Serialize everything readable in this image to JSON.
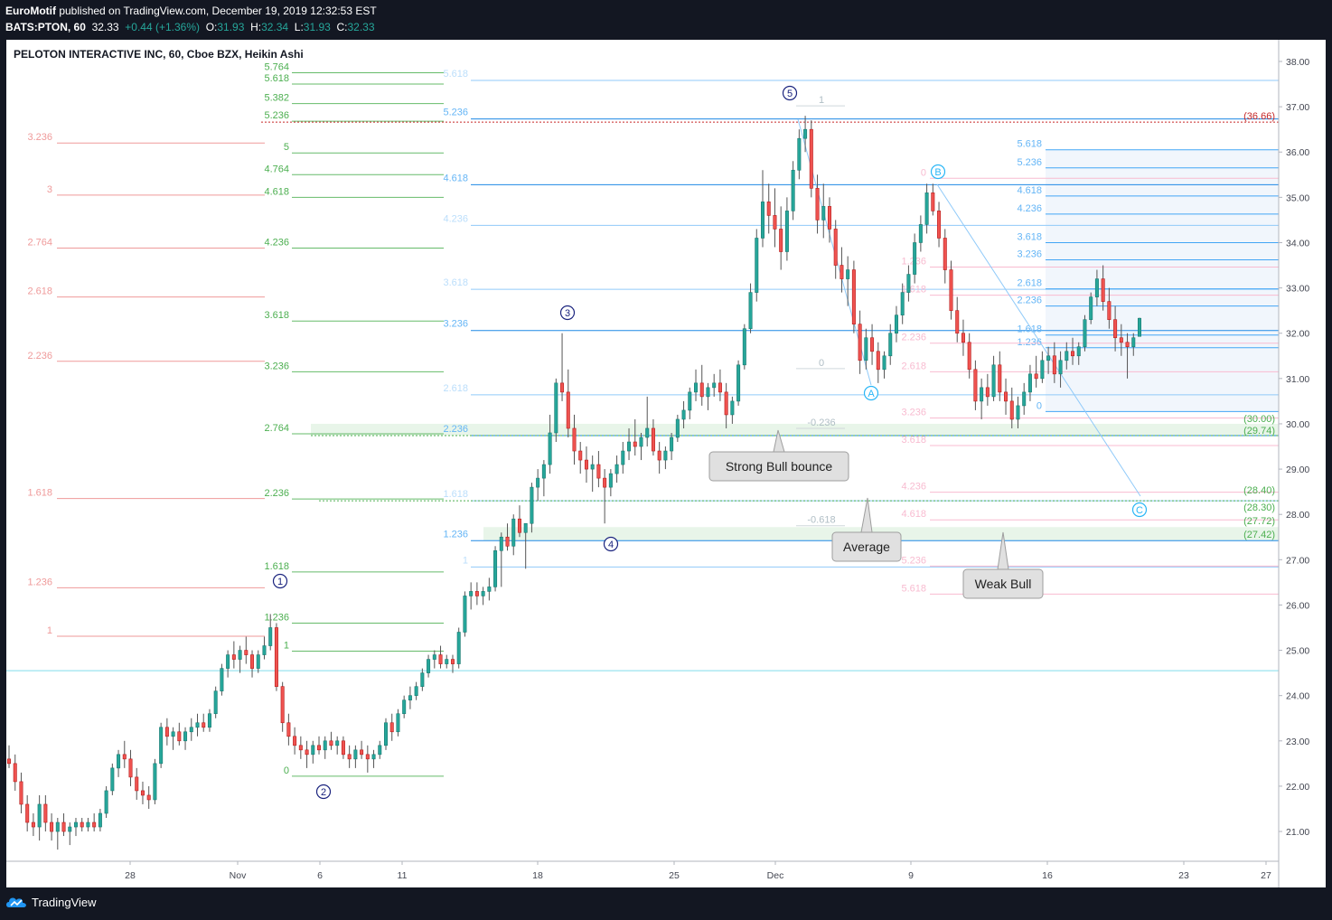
{
  "header": {
    "author": "EuroMotif",
    "published_text": " published on TradingView.com, December 19, 2019 12:32:53 EST",
    "symbol": "BATS:PTON, 60",
    "last": "32.33",
    "change": "+0.44 (+1.36%)",
    "o_label": "O:",
    "o_val": "31.93",
    "h_label": "H:",
    "h_val": "32.34",
    "l_label": "L:",
    "l_val": "31.93",
    "c_label": "C:",
    "c_val": "32.33"
  },
  "footer": {
    "brand": "TradingView"
  },
  "colors": {
    "background": "#131722",
    "up": "#26a69a",
    "down": "#ef5350",
    "fib_green": "#4caf50",
    "fib_red": "#ef9a9a",
    "fib_blue": "#64b5f6",
    "wave_label": "#1a237e",
    "price_box": "#d32f2f"
  },
  "chart_data": {
    "type": "candlestick",
    "title": "PELOTON INTERACTIVE INC, 60, Cboe BZX, Heikin Ashi",
    "y_range": [
      20.5,
      38.4
    ],
    "y_ticks": [
      "38.00",
      "37.00",
      "36.00",
      "35.00",
      "34.00",
      "33.00",
      "32.00",
      "31.00",
      "30.00",
      "29.00",
      "28.00",
      "27.00",
      "26.00",
      "25.00",
      "24.00",
      "23.00",
      "22.00",
      "21.00"
    ],
    "x_ticks": [
      "28",
      "Nov",
      "6",
      "11",
      "18",
      "25",
      "Dec",
      "9",
      "16",
      "23",
      "27"
    ],
    "price_labels": [
      "(36.66)",
      "(30.00)",
      "(29.74)",
      "(28.40)",
      "(28.30)",
      "(27.72)",
      "(27.42)"
    ],
    "candles": [
      [
        22.6,
        22.9,
        22.4,
        22.5
      ],
      [
        22.5,
        22.7,
        21.9,
        22.1
      ],
      [
        22.1,
        22.3,
        21.4,
        21.6
      ],
      [
        21.6,
        21.8,
        21.0,
        21.2
      ],
      [
        21.2,
        21.4,
        20.9,
        21.1
      ],
      [
        21.1,
        21.8,
        20.8,
        21.6
      ],
      [
        21.6,
        21.8,
        21.0,
        21.2
      ],
      [
        21.2,
        21.4,
        20.8,
        21.0
      ],
      [
        21.0,
        21.3,
        20.6,
        21.2
      ],
      [
        21.2,
        21.4,
        20.9,
        21.0
      ],
      [
        21.0,
        21.2,
        20.7,
        21.1
      ],
      [
        21.1,
        21.3,
        20.9,
        21.2
      ],
      [
        21.2,
        21.3,
        21.0,
        21.1
      ],
      [
        21.1,
        21.3,
        21.0,
        21.2
      ],
      [
        21.2,
        21.4,
        21.0,
        21.1
      ],
      [
        21.1,
        21.5,
        21.0,
        21.4
      ],
      [
        21.4,
        22.0,
        21.3,
        21.9
      ],
      [
        21.9,
        22.5,
        21.8,
        22.4
      ],
      [
        22.4,
        22.8,
        22.2,
        22.7
      ],
      [
        22.7,
        23.0,
        22.4,
        22.6
      ],
      [
        22.6,
        22.8,
        22.0,
        22.2
      ],
      [
        22.2,
        22.4,
        21.7,
        21.9
      ],
      [
        21.9,
        22.1,
        21.6,
        21.8
      ],
      [
        21.8,
        22.0,
        21.5,
        21.7
      ],
      [
        21.7,
        22.6,
        21.6,
        22.5
      ],
      [
        22.5,
        23.4,
        22.4,
        23.3
      ],
      [
        23.3,
        23.5,
        22.9,
        23.1
      ],
      [
        23.1,
        23.3,
        22.8,
        23.2
      ],
      [
        23.2,
        23.4,
        22.9,
        23.0
      ],
      [
        23.0,
        23.3,
        22.8,
        23.2
      ],
      [
        23.2,
        23.5,
        23.0,
        23.3
      ],
      [
        23.3,
        23.6,
        23.1,
        23.4
      ],
      [
        23.4,
        23.6,
        23.2,
        23.3
      ],
      [
        23.3,
        23.7,
        23.2,
        23.6
      ],
      [
        23.6,
        24.2,
        23.5,
        24.1
      ],
      [
        24.1,
        24.7,
        24.0,
        24.6
      ],
      [
        24.6,
        25.0,
        24.4,
        24.9
      ],
      [
        24.9,
        25.2,
        24.6,
        24.8
      ],
      [
        24.8,
        25.1,
        24.5,
        25.0
      ],
      [
        25.0,
        25.3,
        24.7,
        24.9
      ],
      [
        24.9,
        25.0,
        24.4,
        24.6
      ],
      [
        24.6,
        25.0,
        24.5,
        24.9
      ],
      [
        24.9,
        25.3,
        24.8,
        25.1
      ],
      [
        25.1,
        25.8,
        25.0,
        25.5
      ],
      [
        25.5,
        25.6,
        24.1,
        24.2
      ],
      [
        24.2,
        24.3,
        23.2,
        23.4
      ],
      [
        23.4,
        23.6,
        22.9,
        23.1
      ],
      [
        23.1,
        23.3,
        22.7,
        22.9
      ],
      [
        22.9,
        23.1,
        22.6,
        22.8
      ],
      [
        22.8,
        23.0,
        22.4,
        22.7
      ],
      [
        22.7,
        23.0,
        22.5,
        22.9
      ],
      [
        22.9,
        23.1,
        22.7,
        22.8
      ],
      [
        22.8,
        23.1,
        22.6,
        23.0
      ],
      [
        23.0,
        23.2,
        22.8,
        22.9
      ],
      [
        22.9,
        23.1,
        22.7,
        23.0
      ],
      [
        23.0,
        23.1,
        22.6,
        22.7
      ],
      [
        22.7,
        22.9,
        22.4,
        22.6
      ],
      [
        22.6,
        22.9,
        22.4,
        22.8
      ],
      [
        22.8,
        23.0,
        22.6,
        22.7
      ],
      [
        22.7,
        22.9,
        22.3,
        22.6
      ],
      [
        22.6,
        22.8,
        22.4,
        22.7
      ],
      [
        22.7,
        23.0,
        22.6,
        22.9
      ],
      [
        22.9,
        23.5,
        22.8,
        23.4
      ],
      [
        23.4,
        23.6,
        23.0,
        23.2
      ],
      [
        23.2,
        23.7,
        23.1,
        23.6
      ],
      [
        23.6,
        24.0,
        23.5,
        23.9
      ],
      [
        23.9,
        24.2,
        23.7,
        24.0
      ],
      [
        24.0,
        24.3,
        23.9,
        24.2
      ],
      [
        24.2,
        24.6,
        24.1,
        24.5
      ],
      [
        24.5,
        24.9,
        24.4,
        24.8
      ],
      [
        24.8,
        25.0,
        24.6,
        24.9
      ],
      [
        24.9,
        25.1,
        24.6,
        24.7
      ],
      [
        24.7,
        24.9,
        24.6,
        24.8
      ],
      [
        24.8,
        24.9,
        24.5,
        24.7
      ],
      [
        24.7,
        25.5,
        24.6,
        25.4
      ],
      [
        25.4,
        26.3,
        25.3,
        26.2
      ],
      [
        26.2,
        26.5,
        25.9,
        26.3
      ],
      [
        26.3,
        26.5,
        26.0,
        26.2
      ],
      [
        26.2,
        26.4,
        26.0,
        26.3
      ],
      [
        26.3,
        26.6,
        26.1,
        26.4
      ],
      [
        26.4,
        27.3,
        26.3,
        27.2
      ],
      [
        27.2,
        27.6,
        26.4,
        27.5
      ],
      [
        27.5,
        27.8,
        27.2,
        27.3
      ],
      [
        27.3,
        28.0,
        27.1,
        27.9
      ],
      [
        27.9,
        28.2,
        27.5,
        27.6
      ],
      [
        27.6,
        27.8,
        26.8,
        27.8
      ],
      [
        27.8,
        28.7,
        27.6,
        28.6
      ],
      [
        28.6,
        29.0,
        28.3,
        28.8
      ],
      [
        28.8,
        29.2,
        28.4,
        29.1
      ],
      [
        29.1,
        30.2,
        28.9,
        29.8
      ],
      [
        29.8,
        31.0,
        29.6,
        30.9
      ],
      [
        30.9,
        32.0,
        30.5,
        30.7
      ],
      [
        30.7,
        31.2,
        29.7,
        29.9
      ],
      [
        29.9,
        30.2,
        29.1,
        29.4
      ],
      [
        29.4,
        29.6,
        28.9,
        29.2
      ],
      [
        29.2,
        29.5,
        28.7,
        29.0
      ],
      [
        29.0,
        29.3,
        28.5,
        29.1
      ],
      [
        29.1,
        29.4,
        28.6,
        28.8
      ],
      [
        28.8,
        29.0,
        27.8,
        28.6
      ],
      [
        28.6,
        29.0,
        28.4,
        28.9
      ],
      [
        28.9,
        29.3,
        28.7,
        29.1
      ],
      [
        29.1,
        29.6,
        28.9,
        29.4
      ],
      [
        29.4,
        29.9,
        29.2,
        29.6
      ],
      [
        29.6,
        30.1,
        29.3,
        29.5
      ],
      [
        29.5,
        29.8,
        29.2,
        29.7
      ],
      [
        29.7,
        30.6,
        29.5,
        29.9
      ],
      [
        29.9,
        30.1,
        29.3,
        29.4
      ],
      [
        29.4,
        29.6,
        28.9,
        29.2
      ],
      [
        29.2,
        29.5,
        29.0,
        29.4
      ],
      [
        29.4,
        29.8,
        29.2,
        29.7
      ],
      [
        29.7,
        30.2,
        29.6,
        30.1
      ],
      [
        30.1,
        30.5,
        29.9,
        30.3
      ],
      [
        30.3,
        30.8,
        30.1,
        30.7
      ],
      [
        30.7,
        31.2,
        30.5,
        30.9
      ],
      [
        30.9,
        31.3,
        30.4,
        30.6
      ],
      [
        30.6,
        30.9,
        30.3,
        30.8
      ],
      [
        30.8,
        31.1,
        30.6,
        30.9
      ],
      [
        30.9,
        31.2,
        30.5,
        30.7
      ],
      [
        30.7,
        30.9,
        29.9,
        30.2
      ],
      [
        30.2,
        30.6,
        30.0,
        30.5
      ],
      [
        30.5,
        31.4,
        30.4,
        31.3
      ],
      [
        31.3,
        32.2,
        31.2,
        32.1
      ],
      [
        32.1,
        33.1,
        32.0,
        32.9
      ],
      [
        32.9,
        34.3,
        32.7,
        34.1
      ],
      [
        34.1,
        35.6,
        33.9,
        34.9
      ],
      [
        34.9,
        35.3,
        34.2,
        34.6
      ],
      [
        34.6,
        35.2,
        33.9,
        34.3
      ],
      [
        34.3,
        34.8,
        33.4,
        33.8
      ],
      [
        33.8,
        35.0,
        33.6,
        34.7
      ],
      [
        34.7,
        35.8,
        34.5,
        35.6
      ],
      [
        35.6,
        36.5,
        35.4,
        36.3
      ],
      [
        36.3,
        36.8,
        36.0,
        36.5
      ],
      [
        36.5,
        36.7,
        35.0,
        35.2
      ],
      [
        35.2,
        35.5,
        34.2,
        34.5
      ],
      [
        34.5,
        35.3,
        34.1,
        34.8
      ],
      [
        34.8,
        35.0,
        34.0,
        34.3
      ],
      [
        34.3,
        34.5,
        33.2,
        33.5
      ],
      [
        33.5,
        33.9,
        32.9,
        33.2
      ],
      [
        33.2,
        33.7,
        32.6,
        33.4
      ],
      [
        33.4,
        33.6,
        32.0,
        32.2
      ],
      [
        32.2,
        32.5,
        31.1,
        31.4
      ],
      [
        31.4,
        32.1,
        31.2,
        31.9
      ],
      [
        31.9,
        32.2,
        31.3,
        31.6
      ],
      [
        31.6,
        31.8,
        30.9,
        31.2
      ],
      [
        31.2,
        31.6,
        31.0,
        31.5
      ],
      [
        31.5,
        32.2,
        31.3,
        32.0
      ],
      [
        32.0,
        32.6,
        31.8,
        32.4
      ],
      [
        32.4,
        33.1,
        32.2,
        32.9
      ],
      [
        32.9,
        33.5,
        32.7,
        33.3
      ],
      [
        33.3,
        34.2,
        33.1,
        34.0
      ],
      [
        34.0,
        34.6,
        33.8,
        34.4
      ],
      [
        34.4,
        35.3,
        34.2,
        35.1
      ],
      [
        35.1,
        35.3,
        34.6,
        34.7
      ],
      [
        34.7,
        34.9,
        33.9,
        34.1
      ],
      [
        34.1,
        34.3,
        33.1,
        33.4
      ],
      [
        33.4,
        33.6,
        32.3,
        32.5
      ],
      [
        32.5,
        32.8,
        31.8,
        32.0
      ],
      [
        32.0,
        32.3,
        31.5,
        31.8
      ],
      [
        31.8,
        32.0,
        31.0,
        31.2
      ],
      [
        31.2,
        31.4,
        30.3,
        30.5
      ],
      [
        30.5,
        31.0,
        30.1,
        30.8
      ],
      [
        30.8,
        31.1,
        30.4,
        30.6
      ],
      [
        30.6,
        31.5,
        30.5,
        31.3
      ],
      [
        31.3,
        31.6,
        30.5,
        30.7
      ],
      [
        30.7,
        31.0,
        30.2,
        30.5
      ],
      [
        30.5,
        30.8,
        29.9,
        30.1
      ],
      [
        30.1,
        30.6,
        29.9,
        30.4
      ],
      [
        30.4,
        30.9,
        30.2,
        30.7
      ],
      [
        30.7,
        31.3,
        30.5,
        31.1
      ],
      [
        31.1,
        31.5,
        30.8,
        31.0
      ],
      [
        31.0,
        31.6,
        30.9,
        31.4
      ],
      [
        31.4,
        31.7,
        31.1,
        31.5
      ],
      [
        31.5,
        31.8,
        30.9,
        31.1
      ],
      [
        31.1,
        31.6,
        30.8,
        31.4
      ],
      [
        31.4,
        31.8,
        31.2,
        31.6
      ],
      [
        31.6,
        31.9,
        31.3,
        31.5
      ],
      [
        31.5,
        31.8,
        31.3,
        31.7
      ],
      [
        31.7,
        32.4,
        31.6,
        32.3
      ],
      [
        32.3,
        32.9,
        32.2,
        32.8
      ],
      [
        32.8,
        33.4,
        32.6,
        33.2
      ],
      [
        33.2,
        33.5,
        32.5,
        32.7
      ],
      [
        32.7,
        33.0,
        32.1,
        32.3
      ],
      [
        32.3,
        32.6,
        31.6,
        31.9
      ],
      [
        31.9,
        32.2,
        31.5,
        31.8
      ],
      [
        31.8,
        32.0,
        31.0,
        31.7
      ],
      [
        31.7,
        32.0,
        31.5,
        31.9
      ],
      [
        31.93,
        32.34,
        31.93,
        32.33
      ]
    ],
    "waves": [
      {
        "label": "1",
        "style": "dark"
      },
      {
        "label": "2",
        "style": "dark"
      },
      {
        "label": "3",
        "style": "dark"
      },
      {
        "label": "4",
        "style": "dark"
      },
      {
        "label": "5",
        "style": "dark"
      },
      {
        "label": "A",
        "style": "light"
      },
      {
        "label": "B",
        "style": "light"
      },
      {
        "label": "C",
        "style": "light"
      }
    ],
    "fib_green": [
      {
        "label": "5.764",
        "price": 37.75
      },
      {
        "label": "5.618",
        "price": 37.5
      },
      {
        "label": "5.382",
        "price": 37.07
      },
      {
        "label": "5.236",
        "price": 36.68
      },
      {
        "label": "5",
        "price": 35.98
      },
      {
        "label": "4.764",
        "price": 35.5
      },
      {
        "label": "4.618",
        "price": 35.0
      },
      {
        "label": "4.236",
        "price": 33.88
      },
      {
        "label": "3.618",
        "price": 32.27
      },
      {
        "label": "3.236",
        "price": 31.15
      },
      {
        "label": "2.764",
        "price": 29.78
      },
      {
        "label": "2.236",
        "price": 28.34
      },
      {
        "label": "1.618",
        "price": 26.73
      },
      {
        "label": "1.236",
        "price": 25.6
      },
      {
        "label": "1",
        "price": 24.98
      },
      {
        "label": "0",
        "price": 22.22
      }
    ],
    "fib_red": [
      {
        "label": "3.236",
        "price": 36.2
      },
      {
        "label": "3",
        "price": 35.05
      },
      {
        "label": "2.764",
        "price": 33.88
      },
      {
        "label": "2.618",
        "price": 32.8
      },
      {
        "label": "2.236",
        "price": 31.38
      },
      {
        "label": "1.618",
        "price": 28.35
      },
      {
        "label": "1.236",
        "price": 26.38
      },
      {
        "label": "1",
        "price": 25.31
      }
    ],
    "fib_blue_mid": [
      {
        "label": "5.618",
        "price": 37.58,
        "strong": false
      },
      {
        "label": "5.236",
        "price": 36.73,
        "strong": true
      },
      {
        "label": "4.618",
        "price": 35.28,
        "strong": true
      },
      {
        "label": "4.236",
        "price": 34.38,
        "strong": false
      },
      {
        "label": "3.618",
        "price": 32.97,
        "strong": false
      },
      {
        "label": "3.236",
        "price": 32.06,
        "strong": true
      },
      {
        "label": "2.618",
        "price": 30.64,
        "strong": false
      },
      {
        "label": "2.236",
        "price": 29.74,
        "strong": true
      },
      {
        "label": "1.618",
        "price": 28.3,
        "strong": false
      },
      {
        "label": "1.236",
        "price": 27.42,
        "strong": true
      },
      {
        "label": "1",
        "price": 26.84,
        "strong": false
      }
    ],
    "fib_blue_right": [
      {
        "label": "5.618",
        "price": 36.05
      },
      {
        "label": "5.236",
        "price": 35.65
      },
      {
        "label": "4.618",
        "price": 35.03
      },
      {
        "label": "4.236",
        "price": 34.63
      },
      {
        "label": "3.618",
        "price": 34.0
      },
      {
        "label": "3.236",
        "price": 33.62
      },
      {
        "label": "2.618",
        "price": 32.98
      },
      {
        "label": "2.236",
        "price": 32.6
      },
      {
        "label": "1.618",
        "price": 31.96
      },
      {
        "label": "1.236",
        "price": 31.68
      },
      {
        "label": "0",
        "price": 30.27
      }
    ],
    "fib_pink_right": [
      {
        "label": "0",
        "price": 35.42
      },
      {
        "label": "1.236",
        "price": 33.46
      },
      {
        "label": "1.618",
        "price": 32.84
      },
      {
        "label": "2.236",
        "price": 31.78
      },
      {
        "label": "2.618",
        "price": 31.15
      },
      {
        "label": "3.236",
        "price": 30.13
      },
      {
        "label": "3.618",
        "price": 29.52
      },
      {
        "label": "4.236",
        "price": 28.49
      },
      {
        "label": "4.618",
        "price": 27.88
      },
      {
        "label": "5.236",
        "price": 26.86
      },
      {
        "label": "5.618",
        "price": 26.24
      }
    ],
    "fib_gray": [
      {
        "label": "1",
        "price": 37.02
      },
      {
        "label": "0",
        "price": 31.22
      },
      {
        "label": "-0.236",
        "price": 29.9
      },
      {
        "label": "-0.618",
        "price": 27.75
      }
    ],
    "callouts": [
      "Strong Bull bounce",
      "Average",
      "Weak Bull"
    ]
  }
}
